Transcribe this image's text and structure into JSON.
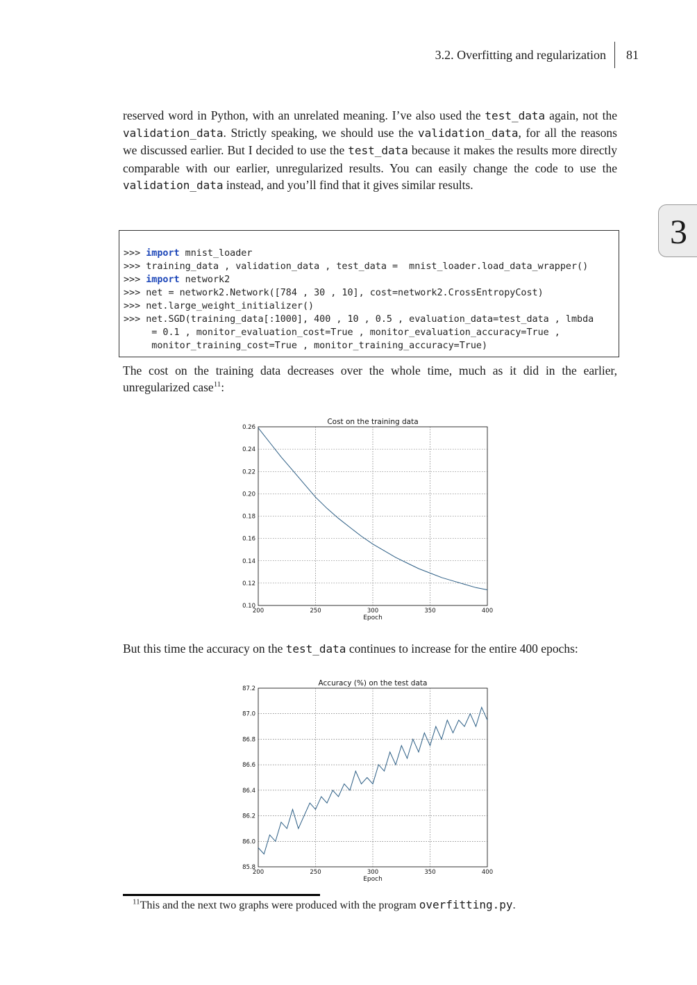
{
  "header": {
    "section": "3.2.  Overfitting and regularization",
    "page_number": "81"
  },
  "chapter_tab": "3",
  "para1": {
    "t1": "reserved word in Python, with an unrelated meaning. I’ve also used the ",
    "c1": "test_data",
    "t2": " again, not the ",
    "c2": "validation_data",
    "t3": ". Strictly speaking, we should use the ",
    "c3": "validation_data",
    "t4": ", for all the reasons we discussed earlier.  But I decided to use the ",
    "c4": "test_data",
    "t5": " because it makes the results more directly comparable with our earlier, unregularized results. You can easily change the code to use the ",
    "c5": "validation_data",
    "t6": " instead, and you’ll find that it gives similar results."
  },
  "code": {
    "l1_prompt": ">>> ",
    "l1_kw": "import",
    "l1_rest": " mnist_loader",
    "l2": ">>> training_data , validation_data , test_data =  mnist_loader.load_data_wrapper()",
    "l3_prompt": ">>> ",
    "l3_kw": "import",
    "l3_rest": " network2",
    "l4": ">>> net = network2.Network([784 , 30 , 10], cost=network2.CrossEntropyCost)",
    "l5": ">>> net.large_weight_initializer()",
    "l6": ">>> net.SGD(training_data[:1000], 400 , 10 , 0.5 , evaluation_data=test_data , lmbda",
    "l7": "     = 0.1 , monitor_evaluation_cost=True , monitor_evaluation_accuracy=True ,",
    "l8": "     monitor_training_cost=True , monitor_training_accuracy=True)"
  },
  "para2": {
    "text": "The cost on the training data decreases over the whole time, much as it did in the earlier, unregularized case",
    "sup": "11",
    "end": ":"
  },
  "para3": {
    "t1": "But this time the accuracy on the ",
    "c1": "test_data",
    "t2": " continues to increase for the entire 400 epochs:"
  },
  "footnote": {
    "mark": "11",
    "text": "This and the next two graphs were produced with the program ",
    "code": "overfitting.py",
    "end": "."
  },
  "chart_data": [
    {
      "type": "line",
      "title": "Cost on the training data",
      "xlabel": "Epoch",
      "ylabel": "",
      "xlim": [
        200,
        400
      ],
      "ylim": [
        0.1,
        0.26
      ],
      "xticks": [
        "200",
        "250",
        "300",
        "350",
        "400"
      ],
      "yticks": [
        "0.10",
        "0.12",
        "0.14",
        "0.16",
        "0.18",
        "0.20",
        "0.22",
        "0.24",
        "0.26"
      ],
      "grid": true,
      "color": "#2b5d84",
      "x": [
        200,
        210,
        220,
        230,
        240,
        250,
        260,
        270,
        280,
        290,
        300,
        310,
        320,
        330,
        340,
        350,
        360,
        370,
        380,
        390,
        400
      ],
      "y": [
        0.259,
        0.246,
        0.233,
        0.221,
        0.209,
        0.197,
        0.187,
        0.178,
        0.17,
        0.162,
        0.155,
        0.149,
        0.143,
        0.138,
        0.133,
        0.129,
        0.125,
        0.122,
        0.119,
        0.116,
        0.114
      ]
    },
    {
      "type": "line",
      "title": "Accuracy (%) on the test data",
      "xlabel": "Epoch",
      "ylabel": "",
      "xlim": [
        200,
        400
      ],
      "ylim": [
        85.8,
        87.2
      ],
      "xticks": [
        "200",
        "250",
        "300",
        "350",
        "400"
      ],
      "yticks": [
        "85.8",
        "86.0",
        "86.2",
        "86.4",
        "86.6",
        "86.8",
        "87.0",
        "87.2"
      ],
      "grid": true,
      "color": "#2b5d84",
      "x": [
        200,
        205,
        210,
        215,
        220,
        225,
        230,
        235,
        240,
        245,
        250,
        255,
        260,
        265,
        270,
        275,
        280,
        285,
        290,
        295,
        300,
        305,
        310,
        315,
        320,
        325,
        330,
        335,
        340,
        345,
        350,
        355,
        360,
        365,
        370,
        375,
        380,
        385,
        390,
        395,
        400
      ],
      "y": [
        85.95,
        85.9,
        86.05,
        86.0,
        86.15,
        86.1,
        86.25,
        86.1,
        86.2,
        86.3,
        86.25,
        86.35,
        86.3,
        86.4,
        86.35,
        86.45,
        86.4,
        86.55,
        86.45,
        86.5,
        86.45,
        86.6,
        86.55,
        86.7,
        86.6,
        86.75,
        86.65,
        86.8,
        86.7,
        86.85,
        86.75,
        86.9,
        86.8,
        86.95,
        86.85,
        86.95,
        86.9,
        87.0,
        86.9,
        87.05,
        86.95
      ]
    }
  ]
}
